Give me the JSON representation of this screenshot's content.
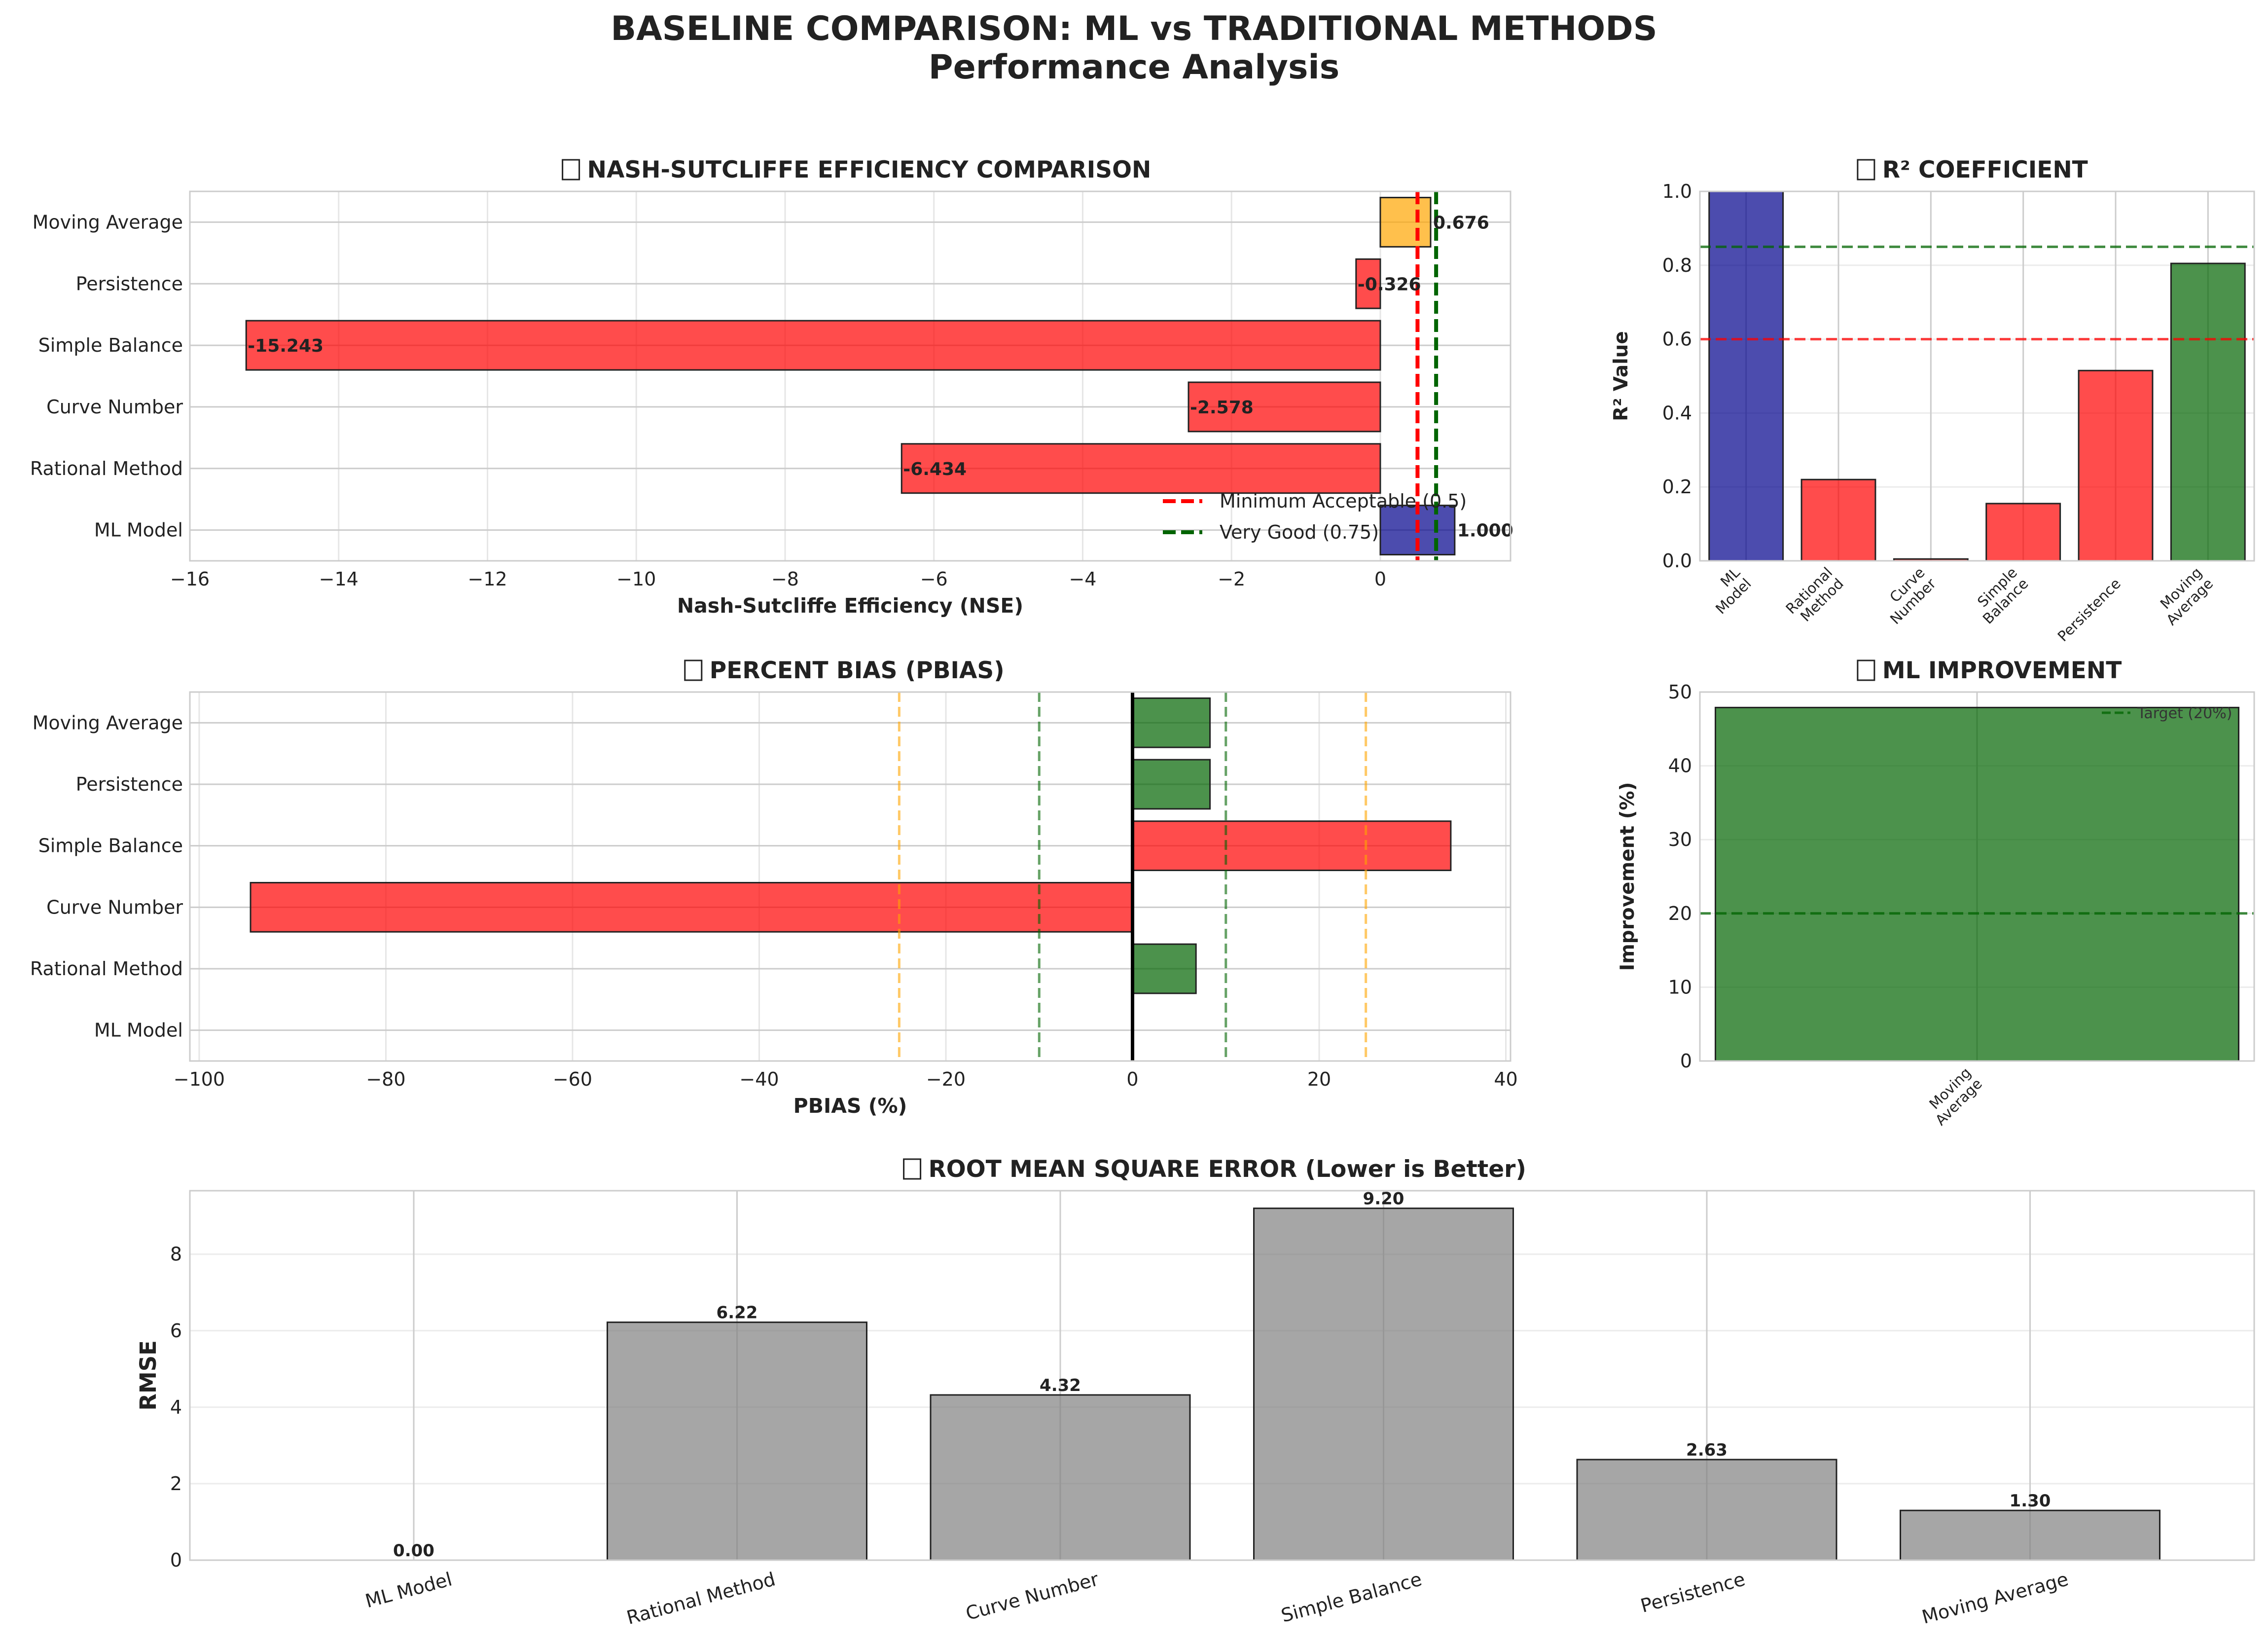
{
  "figure": {
    "title_line1": "BASELINE COMPARISON: ML vs TRADITIONAL METHODS",
    "title_line2": "Performance Analysis"
  },
  "colors": {
    "ml": "#00008b",
    "red": "#ff0000",
    "orange": "#ffa500",
    "green": "#006400",
    "lightgreen": "#228b22",
    "gray": "#808080"
  },
  "chart_data": [
    {
      "id": "nse",
      "type": "bar",
      "orientation": "horizontal",
      "title": "\u0000 NASH-SUTCLIFFE EFFICIENCY COMPARISON",
      "xlabel": "Nash-Sutcliffe Efficiency (NSE)",
      "ylabel": "",
      "categories": [
        "ML Model",
        "Rational Method",
        "Curve Number",
        "Simple Balance",
        "Persistence",
        "Moving Average"
      ],
      "values": [
        1.0,
        -6.434,
        -2.578,
        -15.243,
        -0.326,
        0.676
      ],
      "value_labels": [
        "1.000",
        "-6.434",
        "-2.578",
        "-15.243",
        "-0.326",
        "0.676"
      ],
      "bar_colors": [
        "ml",
        "red",
        "red",
        "red",
        "red",
        "orange"
      ],
      "xlim": [
        -16,
        1.75
      ],
      "xticks": [
        -16,
        -14,
        -12,
        -10,
        -8,
        -6,
        -4,
        -2,
        0
      ],
      "xtick_labels": [
        "−16",
        "−14",
        "−12",
        "−10",
        "−8",
        "−6",
        "−4",
        "−2",
        "0"
      ],
      "reference_lines": [
        {
          "value": 0.5,
          "color": "red",
          "label": "Minimum Acceptable (0.5)"
        },
        {
          "value": 0.75,
          "color": "green",
          "label": "Very Good (0.75)"
        }
      ],
      "legend": "lower-right",
      "grid": true
    },
    {
      "id": "r2",
      "type": "bar",
      "title": "\u0000 R² COEFFICIENT",
      "xlabel": "",
      "ylabel": "R² Value",
      "categories": [
        "ML\nModel",
        "Rational\nMethod",
        "Curve\nNumber",
        "Simple\nBalance",
        "Persistence",
        "Moving\nAverage"
      ],
      "values": [
        1.0,
        0.22,
        0.005,
        0.155,
        0.515,
        0.805
      ],
      "bar_colors": [
        "ml",
        "red",
        "red",
        "red",
        "red",
        "green"
      ],
      "ylim": [
        0,
        1.0
      ],
      "yticks": [
        0.0,
        0.2,
        0.4,
        0.6,
        0.8,
        1.0
      ],
      "ytick_labels": [
        "0.0",
        "0.2",
        "0.4",
        "0.6",
        "0.8",
        "1.0"
      ],
      "reference_lines": [
        {
          "value": 0.6,
          "color": "red"
        },
        {
          "value": 0.85,
          "color": "green"
        }
      ],
      "grid": true
    },
    {
      "id": "pbias",
      "type": "bar",
      "orientation": "horizontal",
      "title": "\u0000 PERCENT BIAS (PBIAS)",
      "xlabel": "PBIAS (%)",
      "ylabel": "",
      "categories": [
        "ML Model",
        "Rational Method",
        "Curve Number",
        "Simple Balance",
        "Persistence",
        "Moving Average"
      ],
      "values": [
        0,
        6.8,
        -94.5,
        34.1,
        8.3,
        8.3
      ],
      "bar_colors": [
        "green",
        "green",
        "red",
        "red",
        "green",
        "green"
      ],
      "xlim": [
        -101,
        40.5
      ],
      "xticks": [
        -100,
        -80,
        -60,
        -40,
        -20,
        0,
        20,
        40
      ],
      "xtick_labels": [
        "−100",
        "−80",
        "−60",
        "−40",
        "−20",
        "0",
        "20",
        "40"
      ],
      "reference_lines": [
        {
          "value": -25,
          "color": "orange"
        },
        {
          "value": -10,
          "color": "green"
        },
        {
          "value": 10,
          "color": "green"
        },
        {
          "value": 25,
          "color": "orange"
        }
      ],
      "grid": true
    },
    {
      "id": "improvement",
      "type": "bar",
      "title": "\u0000 ML IMPROVEMENT",
      "xlabel": "",
      "ylabel": "Improvement (%)",
      "categories": [
        "Moving\nAverage"
      ],
      "values": [
        47.9
      ],
      "bar_colors": [
        "green"
      ],
      "ylim": [
        0,
        50
      ],
      "yticks": [
        0,
        10,
        20,
        30,
        40,
        50
      ],
      "ytick_labels": [
        "0",
        "10",
        "20",
        "30",
        "40",
        "50"
      ],
      "reference_lines": [
        {
          "value": 20,
          "color": "green",
          "label": "Target (20%)"
        }
      ],
      "legend": "top-right",
      "grid": true
    },
    {
      "id": "rmse",
      "type": "bar",
      "title": "\u0000 ROOT MEAN SQUARE ERROR (Lower is Better)",
      "xlabel": "",
      "ylabel": "RMSE",
      "categories": [
        "ML Model",
        "Rational Method",
        "Curve Number",
        "Simple Balance",
        "Persistence",
        "Moving Average"
      ],
      "values": [
        0.0,
        6.22,
        4.32,
        9.2,
        2.63,
        1.3
      ],
      "value_labels": [
        "0.00",
        "6.22",
        "4.32",
        "9.20",
        "2.63",
        "1.30"
      ],
      "bar_colors": [
        "gray",
        "gray",
        "gray",
        "gray",
        "gray",
        "gray"
      ],
      "ylim": [
        0,
        9.66
      ],
      "yticks": [
        0,
        2,
        4,
        6,
        8
      ],
      "ytick_labels": [
        "0",
        "2",
        "4",
        "6",
        "8"
      ],
      "grid": true
    }
  ]
}
